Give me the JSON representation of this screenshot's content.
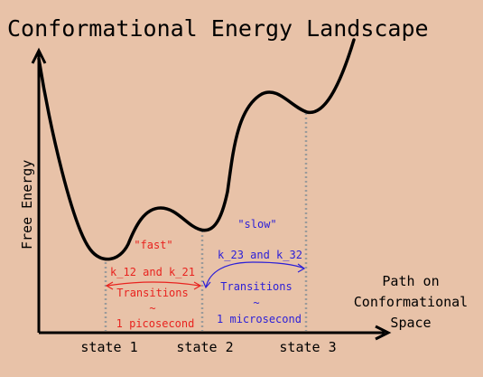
{
  "title": "Conformational Energy Landscape",
  "y_axis_label": "Free Energy",
  "x_axis_label_lines": [
    "Path on",
    "Conformational",
    "Space"
  ],
  "states": [
    "state 1",
    "state 2",
    "state 3"
  ],
  "fast": {
    "tag": "\"fast\"",
    "rates": "k_12 and k_21",
    "transitions": "Transitions",
    "tilde": "~",
    "timescale": "1 picosecond",
    "color": "#e8231f"
  },
  "slow": {
    "tag": "\"slow\"",
    "rates": "k_23 and k_32",
    "transitions": "Transitions",
    "tilde": "~",
    "timescale": "1 microsecond",
    "color": "#2b1fd8"
  },
  "colors": {
    "background": "#e8c2a8",
    "curve": "#000000",
    "dotted": "#9a9a9a"
  }
}
